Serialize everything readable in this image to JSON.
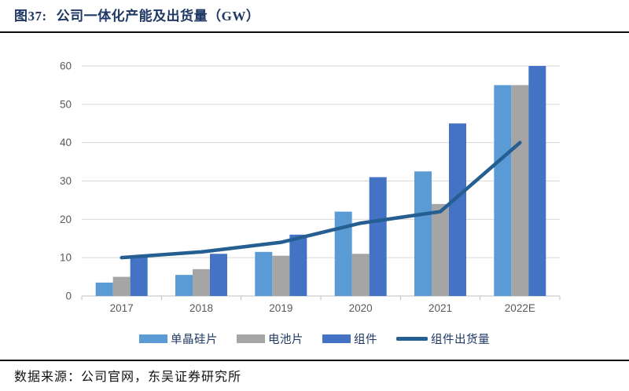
{
  "header": {
    "figure_label": "图37:",
    "figure_title": "公司一体化产能及出货量（GW）",
    "title_color": "#1F3864"
  },
  "footer": {
    "source": "数据来源：公司官网，东吴证券研究所"
  },
  "chart_data": {
    "type": "bar",
    "subtype": "grouped-bars-with-line-overlay",
    "title": "公司一体化产能及出货量（GW）",
    "unit": "GW",
    "categories": [
      "2017",
      "2018",
      "2019",
      "2020",
      "2021",
      "2022E"
    ],
    "series": [
      {
        "type": "bar",
        "name": "单晶硅片",
        "color": "#5B9BD5",
        "values": [
          3.5,
          5.5,
          11.5,
          22,
          32.5,
          55
        ]
      },
      {
        "type": "bar",
        "name": "电池片",
        "color": "#A5A5A5",
        "values": [
          5,
          7,
          10.5,
          11,
          24,
          55
        ]
      },
      {
        "type": "bar",
        "name": "组件",
        "color": "#4472C4",
        "values": [
          10.5,
          11,
          16,
          31,
          45,
          60
        ]
      },
      {
        "type": "line",
        "name": "组件出货量",
        "color": "#255E91",
        "values": [
          10,
          11.5,
          14,
          19,
          22,
          40
        ]
      }
    ],
    "xlabel": "",
    "ylabel": "",
    "ylim": [
      0,
      60
    ],
    "yticks": [
      0,
      10,
      20,
      30,
      40,
      50,
      60
    ],
    "grid": "horizontal",
    "legend_position": "bottom",
    "axis_text_color": "#595959",
    "gridline_color": "#D9D9D9",
    "axis_line_color": "#BFBFBF",
    "legend_text_color": "#1F3864"
  }
}
